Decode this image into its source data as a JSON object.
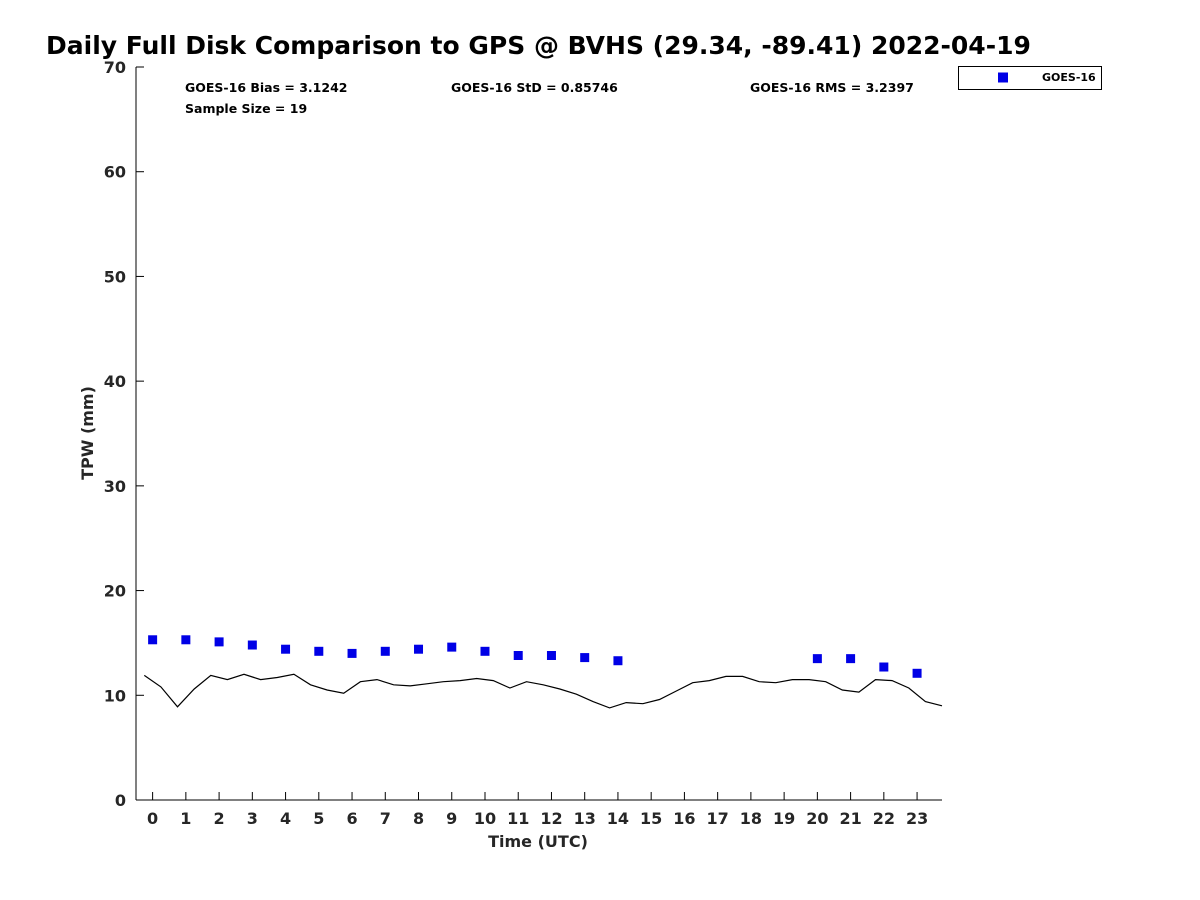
{
  "chart_data": {
    "type": "scatter",
    "title": "Daily Full Disk Comparison to GPS @ BVHS (29.34, -89.41) 2022-04-19",
    "xlabel": "Time (UTC)",
    "ylabel": "TPW (mm)",
    "xlim": [
      -0.5,
      23.75
    ],
    "ylim": [
      0,
      70
    ],
    "x_ticks": [
      "0",
      "1",
      "2",
      "3",
      "4",
      "5",
      "6",
      "7",
      "8",
      "9",
      "10",
      "11",
      "12",
      "13",
      "14",
      "15",
      "16",
      "17",
      "18",
      "19",
      "20",
      "21",
      "22",
      "23"
    ],
    "y_ticks": [
      "0",
      "10",
      "20",
      "30",
      "40",
      "50",
      "60",
      "70"
    ],
    "grid": false,
    "legend_position": "top-right",
    "stats": {
      "bias": "GOES-16 Bias = 3.1242",
      "std": "GOES-16 StD = 0.85746",
      "rms": "GOES-16 RMS = 3.2397",
      "sample": "Sample Size = 19"
    },
    "series": [
      {
        "name": "GOES-16",
        "kind": "scatter",
        "color": "#0000e6",
        "x": [
          0,
          1,
          2,
          3,
          4,
          5,
          6,
          7,
          8,
          9,
          10,
          11,
          12,
          13,
          14,
          20,
          21,
          22,
          23
        ],
        "y": [
          15.3,
          15.3,
          15.1,
          14.8,
          14.4,
          14.2,
          14.0,
          14.2,
          14.4,
          14.6,
          14.2,
          13.8,
          13.8,
          13.6,
          13.3,
          13.5,
          13.5,
          12.7,
          12.1
        ]
      },
      {
        "kind": "line",
        "color": "#000000",
        "x": [
          -0.25,
          0.25,
          0.75,
          1.25,
          1.75,
          2.25,
          2.75,
          3.25,
          3.75,
          4.25,
          4.75,
          5.25,
          5.75,
          6.25,
          6.75,
          7.25,
          7.75,
          8.25,
          8.75,
          9.25,
          9.75,
          10.25,
          10.75,
          11.25,
          11.75,
          12.25,
          12.75,
          13.25,
          13.75,
          14.25,
          14.75,
          15.25,
          15.75,
          16.25,
          16.75,
          17.25,
          17.75,
          18.25,
          18.75,
          19.25,
          19.75,
          20.25,
          20.75,
          21.25,
          21.75,
          22.25,
          22.75,
          23.25,
          23.75
        ],
        "y": [
          11.9,
          10.8,
          8.9,
          10.6,
          11.9,
          11.5,
          12.0,
          11.5,
          11.7,
          12.0,
          11.0,
          10.5,
          10.2,
          11.3,
          11.5,
          11.0,
          10.9,
          11.1,
          11.3,
          11.4,
          11.6,
          11.4,
          10.7,
          11.3,
          11.0,
          10.6,
          10.1,
          9.4,
          8.8,
          9.3,
          9.2,
          9.6,
          10.4,
          11.2,
          11.4,
          11.8,
          11.8,
          11.3,
          11.2,
          11.5,
          11.5,
          11.3,
          10.5,
          10.3,
          11.5,
          11.4,
          10.7,
          9.4,
          9.0
        ]
      }
    ]
  }
}
